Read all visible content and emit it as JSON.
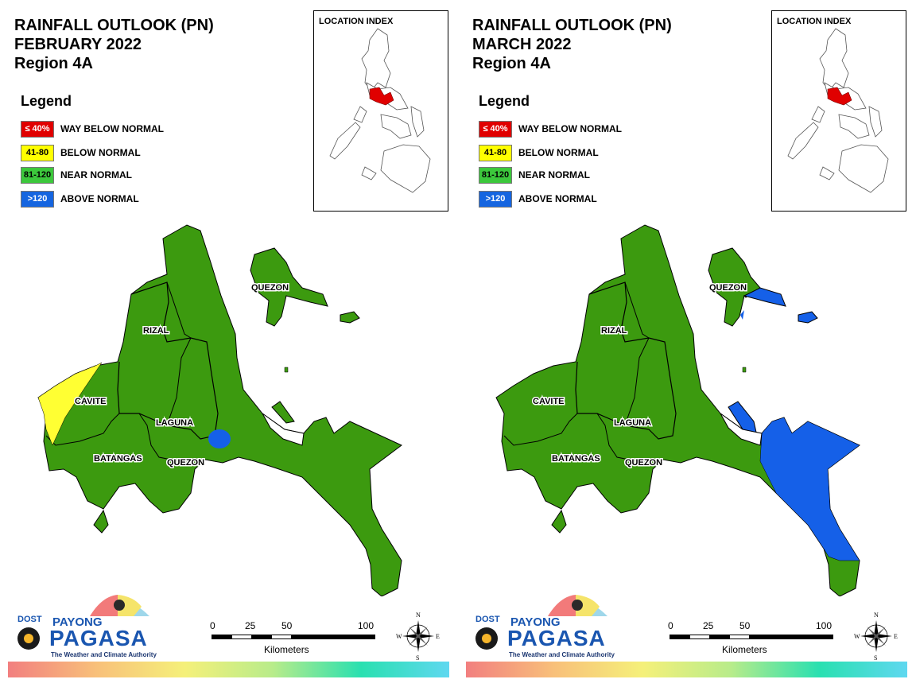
{
  "panels": [
    {
      "title": [
        "RAINFALL OUTLOOK (PN)",
        "FEBRUARY 2022",
        "Region 4A"
      ],
      "legend_title": "Legend",
      "legend": [
        {
          "code": "≤ 40%",
          "label": "WAY BELOW NORMAL",
          "color": "#e00000",
          "text_color": "#ffffff"
        },
        {
          "code": "41-80",
          "label": "BELOW NORMAL",
          "color": "#ffff00",
          "text_color": "#000000"
        },
        {
          "code": "81-120",
          "label": "NEAR NORMAL",
          "color": "#3cc83c",
          "text_color": "#000000"
        },
        {
          "code": ">120",
          "label": "ABOVE NORMAL",
          "color": "#1565e0",
          "text_color": "#ffffff"
        }
      ],
      "location_index": "LOCATION INDEX",
      "places": {
        "quezon_north": "QUEZON",
        "rizal": "RIZAL",
        "cavite": "CAVITE",
        "laguna": "LAGUNA",
        "batangas": "BATANGAS",
        "quezon_south": "QUEZON"
      },
      "zones": {
        "cavite_west": "41-80",
        "quezon_spot": ">120",
        "remainder": "81-120"
      }
    },
    {
      "title": [
        "RAINFALL OUTLOOK (PN)",
        "MARCH 2022",
        "Region 4A"
      ],
      "legend_title": "Legend",
      "legend": [
        {
          "code": "≤ 40%",
          "label": "WAY BELOW NORMAL",
          "color": "#e00000",
          "text_color": "#ffffff"
        },
        {
          "code": "41-80",
          "label": "BELOW NORMAL",
          "color": "#ffff00",
          "text_color": "#000000"
        },
        {
          "code": "81-120",
          "label": "NEAR NORMAL",
          "color": "#3cc83c",
          "text_color": "#000000"
        },
        {
          "code": ">120",
          "label": "ABOVE NORMAL",
          "color": "#1565e0",
          "text_color": "#ffffff"
        }
      ],
      "location_index": "LOCATION INDEX",
      "places": {
        "quezon_north": "QUEZON",
        "rizal": "RIZAL",
        "cavite": "CAVITE",
        "laguna": "LAGUNA",
        "batangas": "BATANGAS",
        "quezon_south": "QUEZON"
      },
      "zones": {
        "quezon_east": ">120",
        "remainder": "81-120"
      }
    }
  ],
  "map_colors": {
    "land": "#3c9a0f",
    "below": "#ffff33",
    "above": "#1560e8",
    "region_highlight": "#e00000"
  },
  "scale": {
    "ticks": [
      "0",
      "25",
      "50",
      "100"
    ],
    "unit": "Kilometers"
  },
  "compass": {
    "n": "N",
    "e": "E",
    "s": "S",
    "w": "W"
  },
  "logo": {
    "dost": "DOST",
    "payong": "PAYONG",
    "pagasa": "PAGASA",
    "tagline": "The Weather and Climate Authority"
  }
}
